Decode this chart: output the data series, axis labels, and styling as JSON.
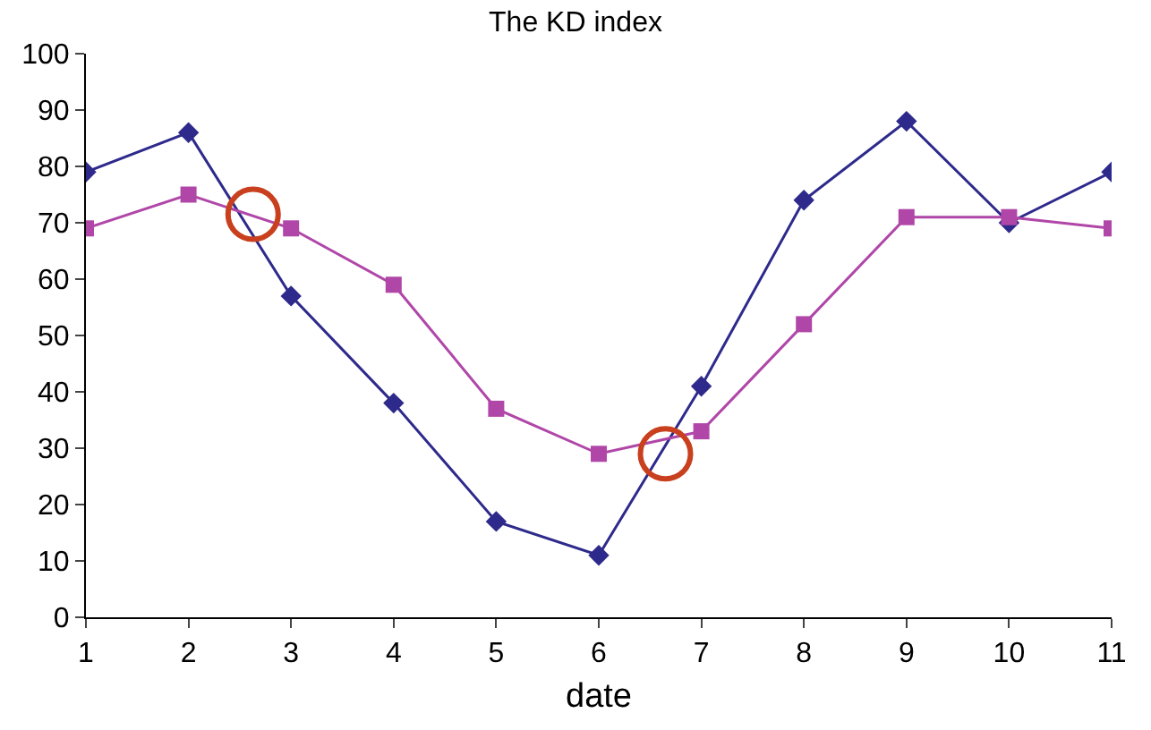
{
  "chart_data": {
    "type": "line",
    "title": "The KD index",
    "xlabel": "date",
    "x": [
      1,
      2,
      3,
      4,
      5,
      6,
      7,
      8,
      9,
      10,
      11
    ],
    "series": [
      {
        "color": "#2e2a8c",
        "marker": "diamond",
        "values": [
          79,
          86,
          57,
          38,
          17,
          11,
          41,
          74,
          88,
          70,
          79
        ]
      },
      {
        "color": "#b047a8",
        "marker": "square",
        "values": [
          69,
          75,
          69,
          59,
          37,
          29,
          33,
          52,
          71,
          71,
          69
        ]
      },
      {
        "type": "scatter",
        "color": "#c8401e",
        "marker": "circle",
        "x": [
          2.63,
          6.65
        ],
        "values": [
          71.5,
          29
        ]
      }
    ],
    "xlim": [
      1,
      11
    ],
    "xticks": [
      1,
      2,
      3,
      4,
      5,
      6,
      7,
      8,
      9,
      10,
      11
    ],
    "ylim": [
      0,
      100
    ],
    "yticks": [
      0,
      10,
      20,
      30,
      40,
      50,
      60,
      70,
      80,
      90,
      100
    ]
  }
}
